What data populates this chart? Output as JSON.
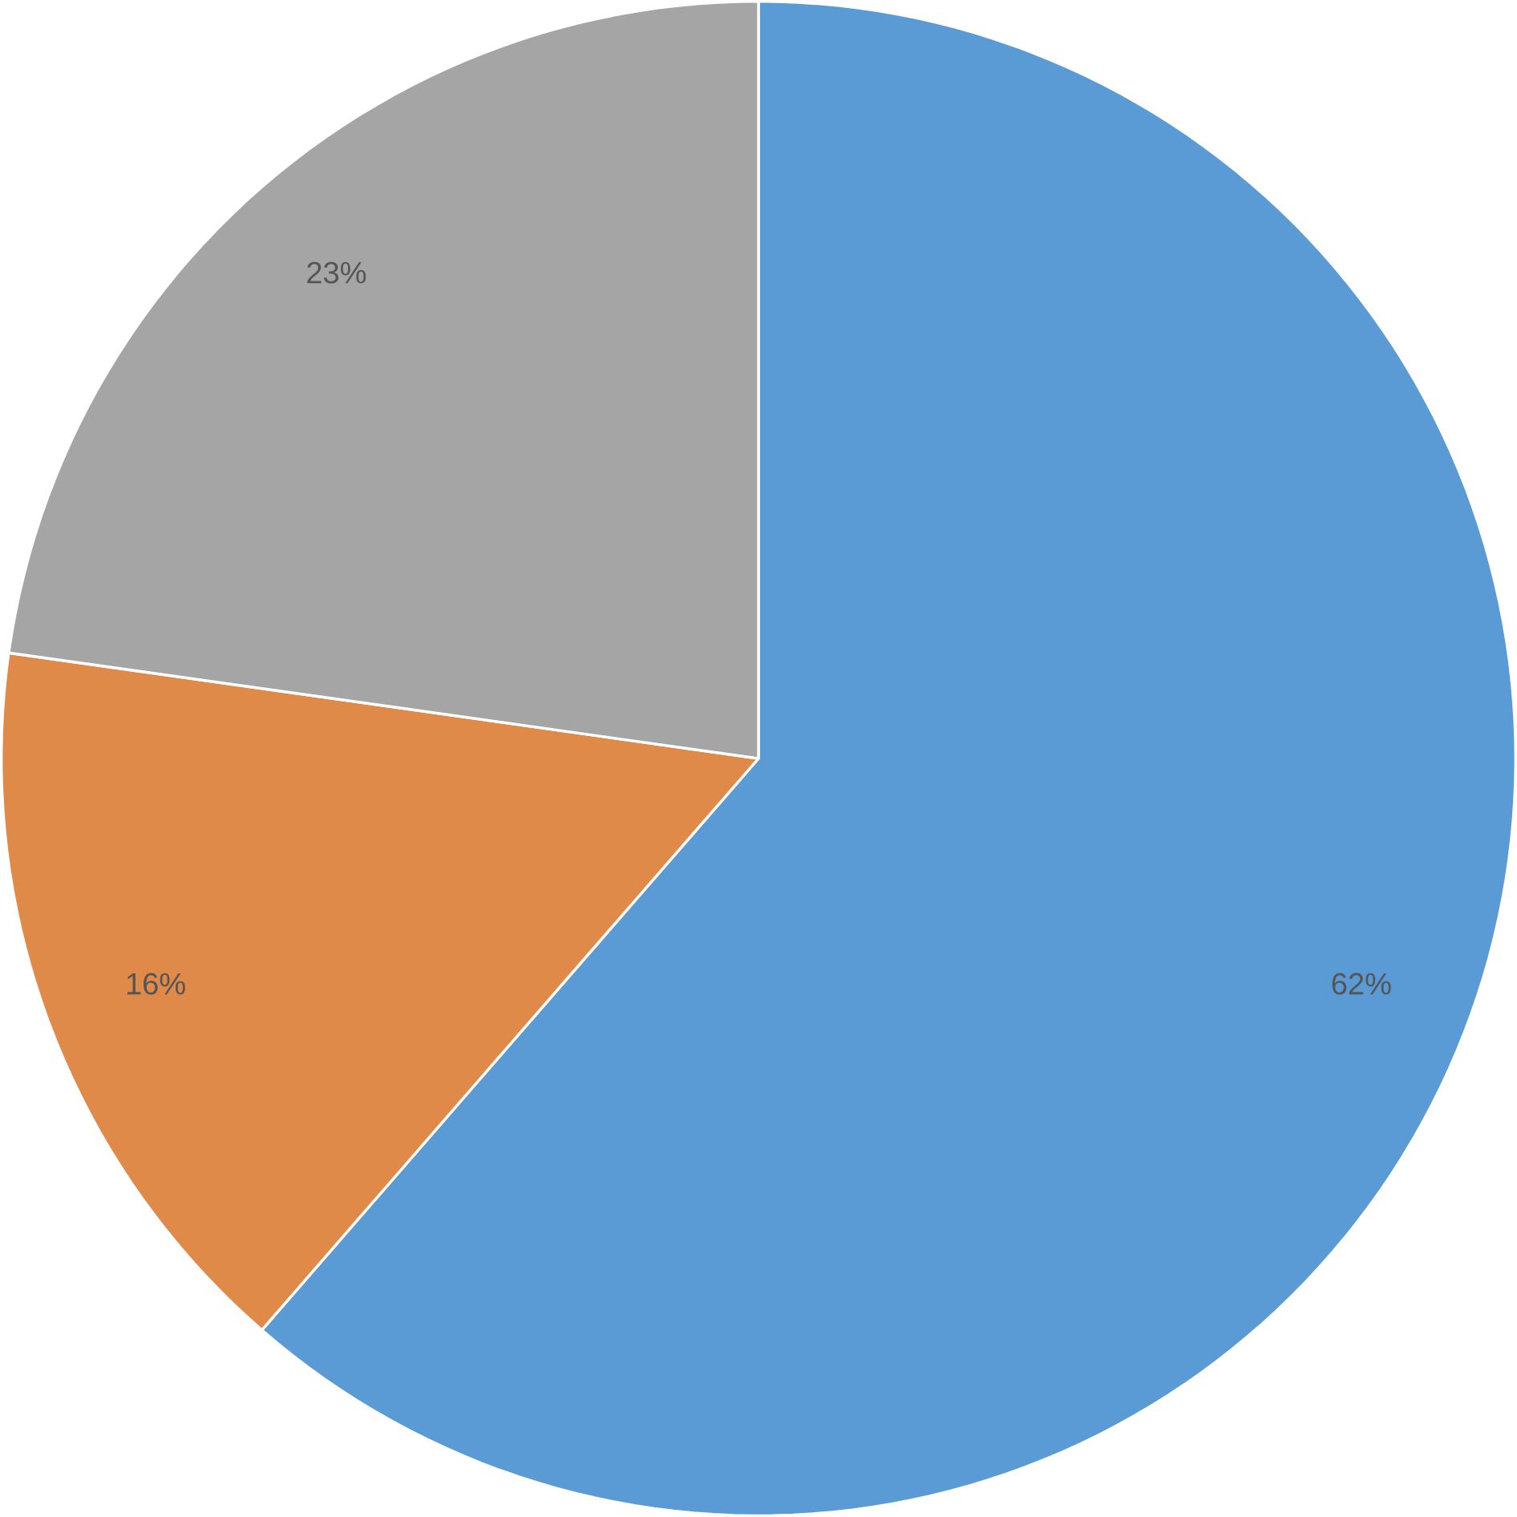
{
  "chart_data": {
    "type": "pie",
    "categories": [
      null,
      null,
      null
    ],
    "values": [
      62,
      16,
      23
    ],
    "colors": [
      "#5b9bd5",
      "#e08a4a",
      "#a5a5a5"
    ],
    "value_labels": [
      "62%",
      "16%",
      "23%"
    ]
  }
}
